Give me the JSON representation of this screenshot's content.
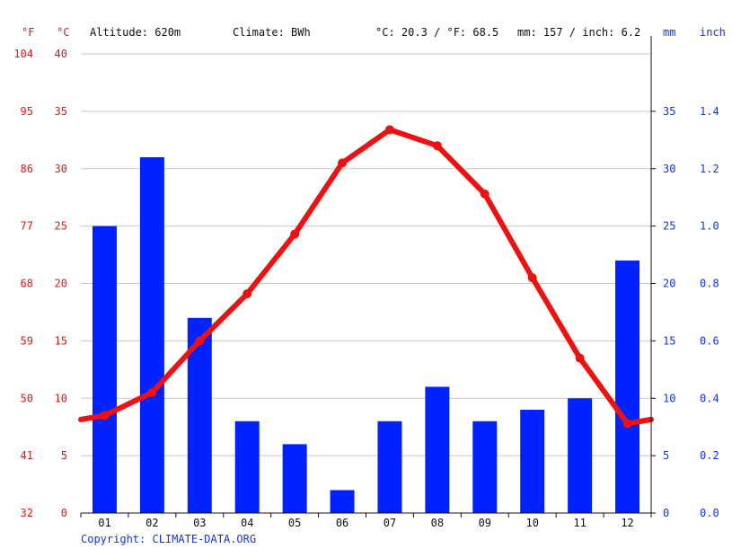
{
  "header": {
    "f_unit": "°F",
    "c_unit": "°C",
    "altitude": "Altitude: 620m",
    "climate": "Climate: BWh",
    "avg_temp": "°C: 20.3 / °F: 68.5",
    "avg_precip": "mm: 157 / inch: 6.2",
    "mm_unit": "mm",
    "inch_unit": "inch"
  },
  "copyright": "Copyright: CLIMATE-DATA.ORG",
  "colors": {
    "temperature": "#ee1111",
    "precipitation": "#0022ff",
    "grid": "#c8c8c8",
    "axis": "#111111"
  },
  "chart_data": {
    "type": "bar",
    "categories": [
      "01",
      "02",
      "03",
      "04",
      "05",
      "06",
      "07",
      "08",
      "09",
      "10",
      "11",
      "12"
    ],
    "series": [
      {
        "type": "bar",
        "axis": "right",
        "values": [
          25,
          31,
          17,
          8,
          6,
          2,
          8,
          11,
          8,
          9,
          10,
          22
        ]
      },
      {
        "type": "line",
        "axis": "left",
        "values": [
          8.5,
          10.5,
          15.0,
          19.1,
          24.3,
          30.5,
          33.4,
          32.0,
          27.8,
          20.5,
          13.5,
          7.8
        ]
      }
    ],
    "left_axis_c": {
      "ylim": [
        0,
        40
      ],
      "ticks": [
        "0",
        "5",
        "10",
        "15",
        "20",
        "25",
        "30",
        "35",
        "40"
      ]
    },
    "left_axis_f": {
      "ticks": [
        "32",
        "41",
        "50",
        "59",
        "68",
        "77",
        "86",
        "95",
        "104"
      ]
    },
    "right_axis_mm": {
      "ylim": [
        0,
        40
      ],
      "ticks": [
        "0",
        "5",
        "10",
        "15",
        "20",
        "25",
        "30",
        "35"
      ]
    },
    "right_axis_inch": {
      "ticks": [
        "0.0",
        "0.2",
        "0.4",
        "0.6",
        "0.8",
        "1.0",
        "1.2",
        "1.4"
      ]
    },
    "grid": true
  }
}
